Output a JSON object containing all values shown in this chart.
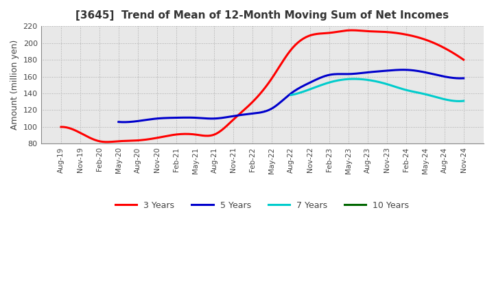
{
  "title": "[3645]  Trend of Mean of 12-Month Moving Sum of Net Incomes",
  "ylabel": "Amount (million yen)",
  "ylim": [
    80,
    220
  ],
  "yticks": [
    80,
    100,
    120,
    140,
    160,
    180,
    200,
    220
  ],
  "plot_bg_color": "#e8e8e8",
  "fig_bg_color": "#ffffff",
  "grid_color": "#aaaaaa",
  "legend_entries": [
    "3 Years",
    "5 Years",
    "7 Years",
    "10 Years"
  ],
  "legend_colors": [
    "#ff0000",
    "#0000cc",
    "#00cccc",
    "#006600"
  ],
  "x_labels": [
    "Aug-19",
    "Nov-19",
    "Feb-20",
    "May-20",
    "Aug-20",
    "Nov-20",
    "Feb-21",
    "May-21",
    "Aug-21",
    "Nov-21",
    "Feb-22",
    "May-22",
    "Aug-22",
    "Nov-22",
    "Feb-23",
    "May-23",
    "Aug-23",
    "Nov-23",
    "Feb-24",
    "May-24",
    "Aug-24",
    "Nov-24"
  ],
  "series_3y": [
    100,
    93,
    83,
    83,
    84,
    87,
    91,
    91,
    91,
    109,
    130,
    158,
    192,
    209,
    212,
    215,
    214,
    213,
    210,
    204,
    194,
    180
  ],
  "series_5y": [
    null,
    null,
    null,
    106,
    107,
    110,
    111,
    111,
    110,
    113,
    116,
    122,
    140,
    153,
    162,
    163,
    165,
    167,
    168,
    165,
    160,
    158
  ],
  "series_7y": [
    null,
    null,
    null,
    null,
    null,
    null,
    null,
    null,
    null,
    null,
    null,
    null,
    138,
    145,
    153,
    157,
    156,
    151,
    144,
    139,
    133,
    131
  ],
  "series_10y": [
    null,
    null,
    null,
    null,
    null,
    null,
    null,
    null,
    null,
    null,
    null,
    null,
    null,
    null,
    null,
    null,
    null,
    null,
    null,
    null,
    null,
    null
  ]
}
